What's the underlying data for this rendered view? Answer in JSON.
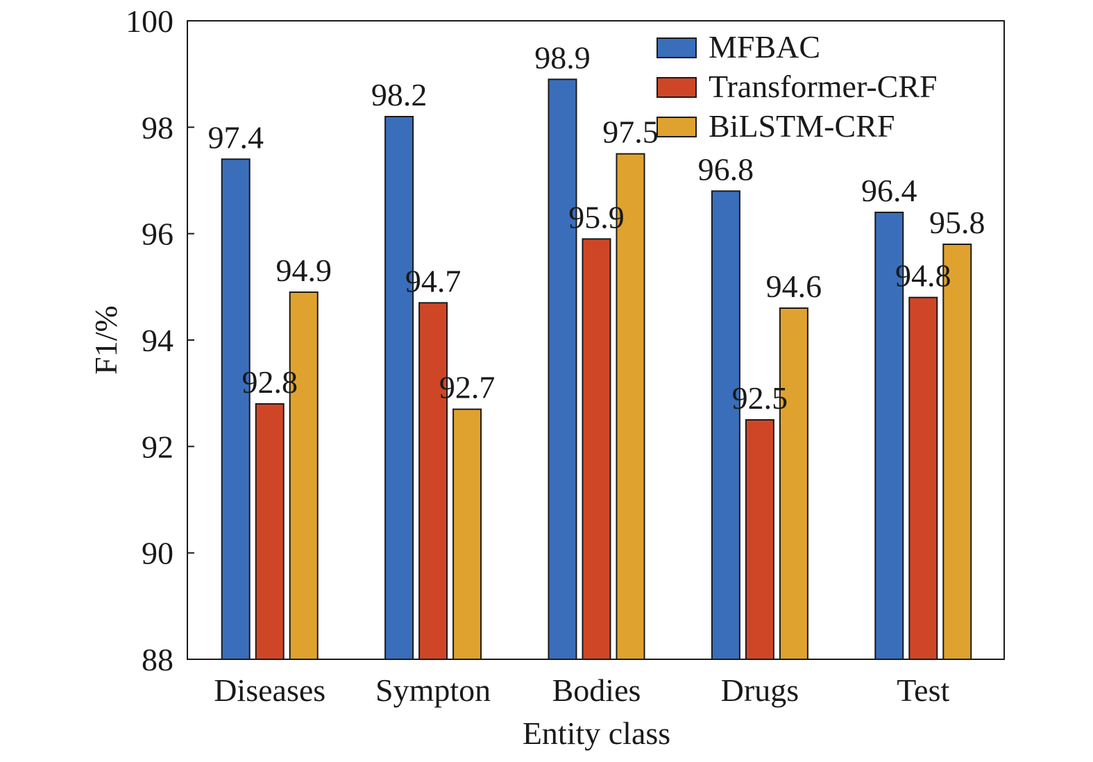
{
  "chart_data": {
    "type": "bar",
    "xlabel": "Entity class",
    "ylabel": "F1/%",
    "ylim": [
      88,
      100
    ],
    "yticks": [
      88,
      90,
      92,
      94,
      96,
      98,
      100
    ],
    "categories": [
      "Diseases",
      "Sympton",
      "Bodies",
      "Drugs",
      "Test"
    ],
    "series": [
      {
        "name": "MFBAC",
        "values": [
          97.4,
          98.2,
          98.9,
          96.8,
          96.4
        ],
        "color": "#3A6EBB"
      },
      {
        "name": "Transformer-CRF",
        "values": [
          92.8,
          94.7,
          95.9,
          92.5,
          94.8
        ],
        "color": "#CF4627"
      },
      {
        "name": "BiLSTM-CRF",
        "values": [
          94.9,
          92.7,
          97.5,
          94.6,
          95.8
        ],
        "color": "#E0A22E"
      }
    ],
    "legend_position": "top-right",
    "grid": false
  }
}
